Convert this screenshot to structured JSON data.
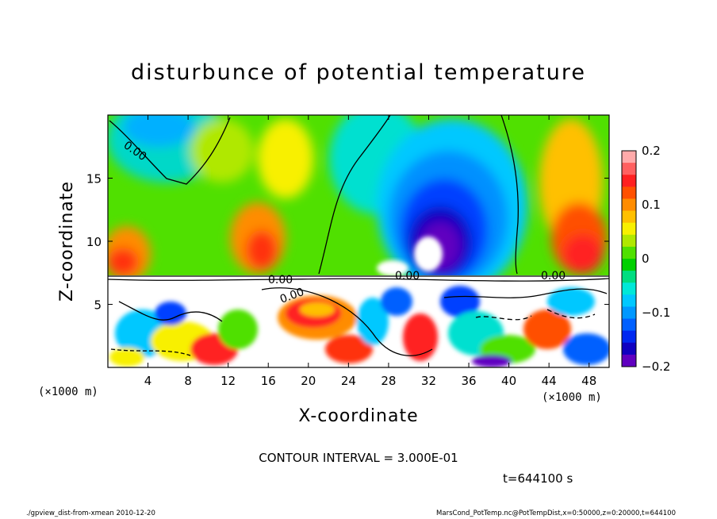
{
  "chart_data": {
    "type": "heatmap",
    "title": "disturbunce of potential temperature",
    "xlabel": "X-coordinate",
    "ylabel": "Z-coordinate",
    "x_unit_left": "(×1000 m)",
    "x_unit_right": "(×1000 m)",
    "xlim": [
      0,
      50
    ],
    "ylim": [
      0,
      20
    ],
    "x_ticks": [
      "4",
      "8",
      "12",
      "16",
      "20",
      "24",
      "28",
      "32",
      "36",
      "40",
      "44",
      "48"
    ],
    "y_ticks": [
      "5",
      "10",
      "15"
    ],
    "colorbar": {
      "range": [
        -0.2,
        0.2
      ],
      "tick_labels": [
        "0.2",
        "0.1",
        "0",
        "−0.1",
        "−0.2"
      ],
      "colors": [
        "#ffaaaa",
        "#ff6060",
        "#ff2020",
        "#ff5000",
        "#ff8c00",
        "#ffc000",
        "#f8f000",
        "#b0e800",
        "#50e000",
        "#00d000",
        "#00dd80",
        "#00e8d8",
        "#00c8ff",
        "#0098ff",
        "#0060ff",
        "#0028f0",
        "#1000c0",
        "#6000c0"
      ]
    },
    "contour_labels": [
      "0.00",
      "0.00",
      "0.00",
      "0.00",
      "0.00"
    ],
    "contour_interval_text": "CONTOUR INTERVAL = 3.000E-01",
    "time_text": "t=644100 s"
  },
  "footer": {
    "left": "./gpview_dist-from-xmean  2010-12-20",
    "right": "MarsCond_PotTemp.nc@PotTempDist,x=0:50000,z=0:20000,t=644100"
  }
}
